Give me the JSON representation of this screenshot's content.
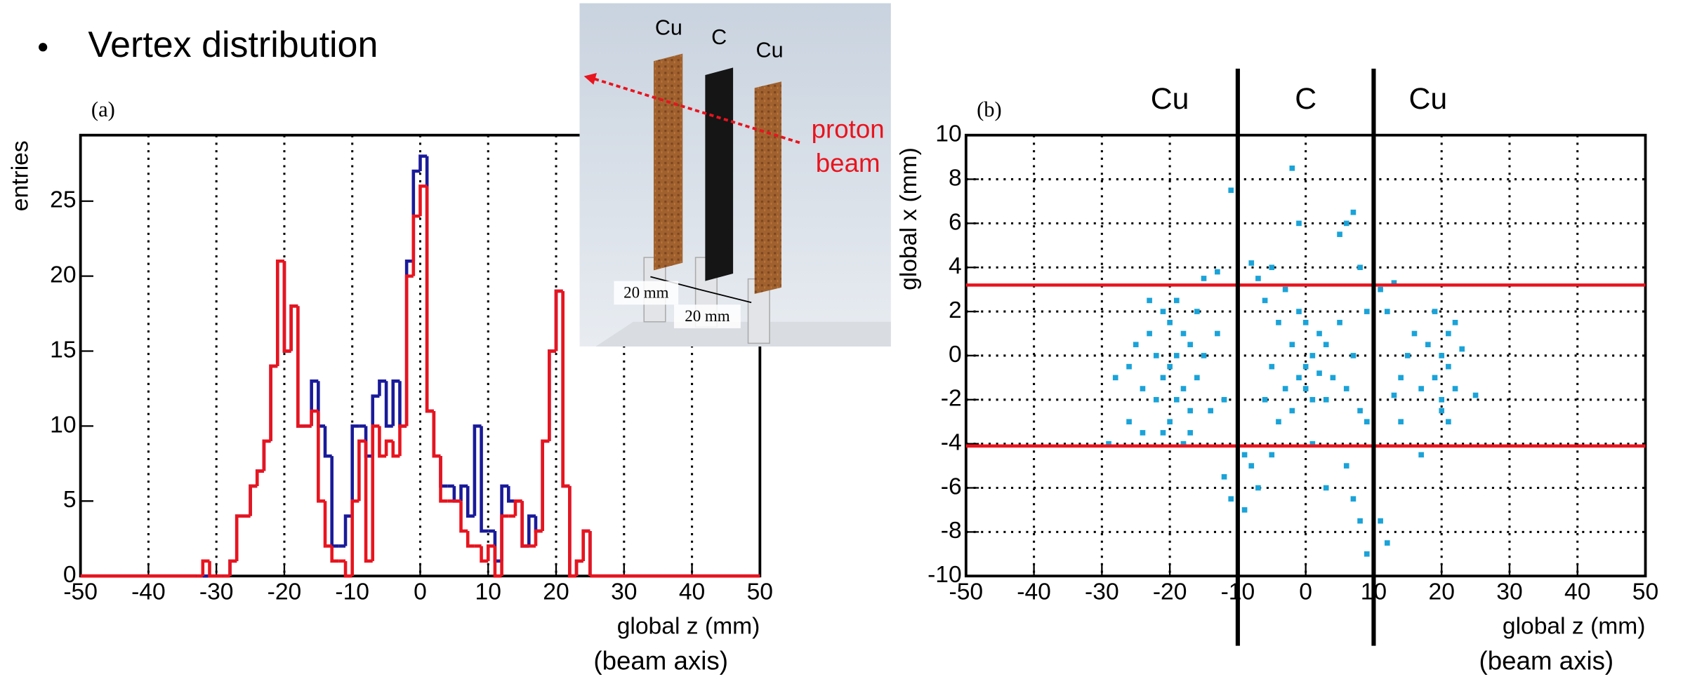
{
  "slide": {
    "bullet": "Vertex distribution",
    "inset": {
      "target_labels": [
        "Cu",
        "C",
        "Cu"
      ],
      "beam_label": [
        "proton",
        "beam"
      ],
      "gap_labels": [
        "20 mm",
        "20 mm"
      ]
    }
  },
  "chart_data": [
    {
      "type": "histogram",
      "panel_label": "(a)",
      "x_label": "global z (mm)",
      "x_sublabel": "(beam axis)",
      "y_label": "entries",
      "bins": [
        -33,
        -32,
        -31,
        -30,
        -29,
        -28,
        -27,
        -26,
        -25,
        -24,
        -23,
        -22,
        -21,
        -20,
        -19,
        -18,
        -17,
        -16,
        -15,
        -14,
        -13,
        -12,
        -11,
        -10,
        -9,
        -8,
        -7,
        -6,
        -5,
        -4,
        -3,
        -2,
        -1,
        0,
        1,
        2,
        3,
        4,
        5,
        6,
        7,
        8,
        9,
        10,
        11,
        12,
        13,
        14,
        15,
        16,
        17,
        18,
        19,
        20,
        21,
        22,
        23,
        24,
        25
      ],
      "series": [
        {
          "color": "#1a1a9a",
          "values": [
            0,
            0,
            0,
            0,
            0,
            1,
            4,
            4,
            6,
            7,
            9,
            14,
            21,
            15,
            18,
            10,
            10,
            13,
            10,
            8,
            2,
            2,
            4,
            10,
            10,
            8,
            12,
            13,
            10,
            13,
            10,
            21,
            27,
            28,
            11,
            8,
            6,
            6,
            5,
            6,
            4,
            10,
            3,
            3,
            1,
            6,
            5,
            5,
            2,
            4,
            3,
            9,
            15,
            19,
            6,
            0,
            1,
            3
          ]
        },
        {
          "color": "#e8141e",
          "values": [
            0,
            1,
            0,
            0,
            0,
            1,
            4,
            4,
            6,
            7,
            9,
            14,
            21,
            15,
            18,
            10,
            10,
            11,
            5,
            2,
            1,
            1,
            0,
            5,
            9,
            1,
            10,
            8,
            9,
            8,
            10,
            20,
            24,
            26,
            11,
            8,
            5,
            5,
            5,
            3,
            2,
            2,
            1,
            2,
            0,
            4,
            4,
            5,
            2,
            2,
            3,
            9,
            15,
            19,
            6,
            0,
            1,
            3
          ]
        }
      ],
      "xlim": [
        -50,
        50
      ],
      "xticks": [
        -50,
        -40,
        -30,
        -20,
        -10,
        0,
        10,
        20,
        30,
        40,
        50
      ],
      "ylim": [
        0,
        29.4
      ],
      "yticks": [
        0,
        5,
        10,
        15,
        20,
        25
      ],
      "grid": true
    },
    {
      "type": "scatter",
      "panel_label": "(b)",
      "x_label": "global z (mm)",
      "x_sublabel": "(beam axis)",
      "y_label": "global x (mm)",
      "color": "#1aa3d8",
      "x": [
        -28,
        -26,
        -25,
        -24,
        -23,
        -22,
        -22,
        -21,
        -21,
        -20,
        -20,
        -20,
        -19,
        -19,
        -19,
        -18,
        -18,
        -17,
        -17,
        -16,
        -16,
        -15,
        -14,
        -13,
        -12,
        -24,
        -26,
        -18,
        -15,
        -13,
        -29,
        -23,
        -21,
        -17,
        -8,
        -7,
        -6,
        -5,
        -4,
        -3,
        -2,
        -1,
        0,
        0,
        0,
        1,
        1,
        2,
        -1,
        -2,
        2,
        3,
        3,
        4,
        -3,
        -5,
        -6,
        5,
        6,
        7,
        8,
        5,
        6,
        7,
        -2,
        -1,
        -5,
        -7,
        -8,
        3,
        6,
        7,
        8,
        9,
        -9,
        -12,
        -11,
        -9,
        -11,
        9,
        9,
        8,
        1,
        -4,
        11,
        12,
        13,
        14,
        15,
        16,
        17,
        18,
        19,
        19,
        20,
        20,
        21,
        21,
        22,
        22,
        23,
        25,
        20,
        17,
        13,
        11,
        12,
        14,
        21
      ],
      "y": [
        -1,
        -0.5,
        0.5,
        -1.5,
        1,
        -2,
        0,
        2,
        -1,
        1.5,
        -0.5,
        -3,
        0,
        2.5,
        -2,
        1,
        -1.5,
        0.5,
        -3.5,
        2,
        -1,
        0,
        -2.5,
        1,
        -2,
        -3.5,
        -3,
        -4,
        3.5,
        3.8,
        -4,
        2.5,
        -3.5,
        -2.5,
        4.2,
        3.5,
        2.5,
        4,
        1.5,
        3,
        0.5,
        2,
        1.5,
        -0.5,
        -1.5,
        0,
        -2,
        1,
        -1,
        -2.5,
        -0.8,
        0.5,
        -2,
        -1,
        -1.5,
        -0.5,
        -2,
        1.5,
        -1.5,
        0,
        -2.5,
        5.5,
        6,
        6.5,
        8.5,
        6,
        -4.5,
        -6,
        -5,
        -6,
        -5,
        -6.5,
        -7.5,
        -9,
        -7,
        -5.5,
        -6.5,
        -4.5,
        7.5,
        -3,
        2,
        4,
        -4,
        -3,
        3,
        2,
        3.3,
        -1,
        0,
        1,
        -1.5,
        0.5,
        2,
        -1,
        0,
        -2,
        1,
        -0.5,
        -1.5,
        1.5,
        0.3,
        -1.8,
        -2.5,
        -4.5,
        -1.8,
        -7.5,
        -8.5,
        -3,
        -3
      ],
      "xlim": [
        -50,
        50
      ],
      "xticks": [
        -50,
        -40,
        -30,
        -20,
        -10,
        0,
        10,
        20,
        30,
        40,
        50
      ],
      "ylim": [
        -10,
        10
      ],
      "yticks": [
        -10,
        -8,
        -6,
        -4,
        -2,
        0,
        2,
        4,
        6,
        8,
        10
      ],
      "grid": true,
      "hlines": {
        "values": [
          3.2,
          -4.1
        ],
        "color": "#e8141e"
      },
      "vlines": [
        -10,
        10
      ],
      "region_labels": [
        {
          "text": "Cu",
          "x": -20
        },
        {
          "text": "C",
          "x": 0
        },
        {
          "text": "Cu",
          "x": 18
        }
      ]
    }
  ]
}
